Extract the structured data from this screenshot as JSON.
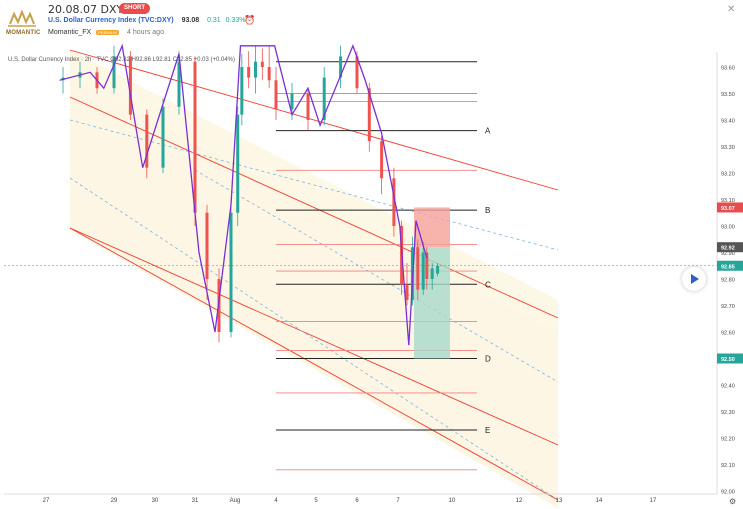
{
  "header": {
    "title": "20.08.07 DXY",
    "badge": "SHORT",
    "symbol": "U.S. Dollar Currency Index (TVC:DXY)",
    "price": "93.08",
    "change": "0.31",
    "change_pct": "0.33%",
    "author": "Momantic_FX",
    "author_badge": "PREMIUM",
    "time_ago": "4 hours ago",
    "logo_text": "MOMANTIC"
  },
  "legend": {
    "text": "U.S. Dollar Currency Index · 2h · TVC  O92.82  H92.86  L92.81  C92.85  +0.03 (+0.04%)"
  },
  "colors": {
    "up": "#26a69a",
    "down": "#ef5350",
    "channel": "#f23a2a",
    "zigzag": "#7b2fd6",
    "fib_fill": "#fdf6e3",
    "level": "#222222"
  },
  "chart_data": {
    "type": "line",
    "ylim": [
      92.0,
      93.65
    ],
    "y_ticks": [
      "93.60",
      "93.50",
      "93.40",
      "93.30",
      "93.20",
      "93.10",
      "93.00",
      "92.90",
      "92.80",
      "92.70",
      "92.60",
      "92.50",
      "92.40",
      "92.30",
      "92.20",
      "92.10",
      "92.00"
    ],
    "x_ticks": [
      "27",
      "29",
      "30",
      "31",
      "Aug",
      "4",
      "5",
      "6",
      "7",
      "10",
      "12",
      "13",
      "14",
      "17"
    ],
    "price_labels": [
      {
        "value": 93.07,
        "text": "93.07",
        "color": "#e84c4c"
      },
      {
        "value": 92.92,
        "text": "92.92",
        "color": "#555555"
      },
      {
        "value": 92.85,
        "text": "92.85",
        "color": "#26a69a"
      },
      {
        "value": 92.5,
        "text": "92.50",
        "color": "#26a69a"
      }
    ],
    "levels": [
      {
        "label": "",
        "value": 93.62
      },
      {
        "label": "A",
        "value": 93.36
      },
      {
        "label": "B",
        "value": 93.06
      },
      {
        "label": "C",
        "value": 92.78
      },
      {
        "label": "D",
        "value": 92.5
      },
      {
        "label": "E",
        "value": 92.23
      }
    ],
    "fib_red_levels": [
      93.5,
      93.47,
      93.21,
      92.93,
      92.83,
      92.64,
      92.53,
      92.37,
      92.08
    ],
    "position": {
      "entry": 92.92,
      "stop": 93.07,
      "target": 92.5
    },
    "zigzag": [
      [
        27.4,
        93.55
      ],
      [
        28.3,
        93.58
      ],
      [
        28.7,
        93.52
      ],
      [
        29.2,
        93.68
      ],
      [
        29.7,
        93.22
      ],
      [
        30.6,
        93.65
      ],
      [
        31.1,
        92.9
      ],
      [
        31.5,
        92.6
      ],
      [
        31.9,
        93.08
      ],
      [
        32.4,
        93.68
      ],
      [
        34.9,
        93.68
      ],
      [
        35.4,
        93.42
      ],
      [
        35.8,
        93.52
      ],
      [
        36.1,
        93.38
      ],
      [
        36.9,
        93.68
      ],
      [
        37.2,
        93.55
      ],
      [
        37.6,
        93.35
      ],
      [
        38.1,
        93.0
      ],
      [
        38.6,
        92.55
      ],
      [
        39.0,
        93.02
      ],
      [
        39.6,
        92.88
      ]
    ],
    "candles": [
      [
        27.5,
        93.55,
        93.6,
        93.5,
        93.56
      ],
      [
        28.0,
        93.56,
        93.62,
        93.52,
        93.58
      ],
      [
        28.5,
        93.58,
        93.6,
        93.5,
        93.52
      ],
      [
        29.0,
        93.52,
        93.68,
        93.5,
        93.64
      ],
      [
        29.4,
        93.64,
        93.66,
        93.4,
        93.42
      ],
      [
        29.8,
        93.42,
        93.44,
        93.18,
        93.22
      ],
      [
        30.2,
        93.22,
        93.48,
        93.2,
        93.45
      ],
      [
        30.6,
        93.45,
        93.66,
        93.42,
        93.62
      ],
      [
        31.0,
        93.62,
        93.64,
        93.0,
        93.05
      ],
      [
        31.3,
        93.05,
        93.08,
        92.72,
        92.8
      ],
      [
        31.6,
        92.8,
        92.84,
        92.56,
        92.6
      ],
      [
        31.9,
        92.6,
        93.1,
        92.58,
        93.05
      ],
      [
        32.2,
        93.05,
        93.45,
        93.0,
        93.42
      ],
      [
        32.5,
        93.42,
        93.65,
        93.38,
        93.6
      ],
      [
        33.0,
        93.6,
        93.66,
        93.52,
        93.56
      ],
      [
        33.5,
        93.56,
        93.68,
        93.5,
        93.62
      ],
      [
        34.0,
        93.62,
        93.67,
        93.55,
        93.6
      ],
      [
        34.5,
        93.6,
        93.68,
        93.52,
        93.55
      ],
      [
        35.0,
        93.55,
        93.6,
        93.4,
        93.44
      ],
      [
        35.4,
        93.44,
        93.54,
        93.4,
        93.5
      ],
      [
        35.8,
        93.5,
        93.52,
        93.36,
        93.4
      ],
      [
        36.2,
        93.4,
        93.6,
        93.38,
        93.56
      ],
      [
        36.6,
        93.56,
        93.68,
        93.52,
        93.64
      ],
      [
        37.0,
        93.64,
        93.66,
        93.5,
        93.52
      ],
      [
        37.3,
        93.52,
        93.54,
        93.28,
        93.32
      ],
      [
        37.6,
        93.32,
        93.34,
        93.12,
        93.18
      ],
      [
        37.9,
        93.18,
        93.22,
        92.96,
        93.0
      ],
      [
        38.2,
        93.0,
        93.02,
        92.74,
        92.78
      ],
      [
        38.5,
        92.78,
        92.86,
        92.7,
        92.72
      ],
      [
        38.8,
        92.72,
        92.96,
        92.7,
        92.92
      ],
      [
        39.1,
        92.92,
        92.95,
        92.72,
        92.76
      ],
      [
        39.4,
        92.76,
        92.94,
        92.74,
        92.9
      ],
      [
        39.6,
        92.9,
        92.92,
        92.76,
        92.8
      ],
      [
        39.9,
        92.8,
        92.86,
        92.76,
        92.84
      ],
      [
        40.2,
        92.82,
        92.86,
        92.81,
        92.85
      ]
    ],
    "x_map": {
      "27": 46,
      "29": 114,
      "30": 155,
      "31": 195,
      "Aug": 235,
      "4": 276,
      "5": 316,
      "6": 357,
      "7": 398,
      "10": 452,
      "12": 519,
      "13": 559,
      "14": 599,
      "17": 653
    }
  }
}
